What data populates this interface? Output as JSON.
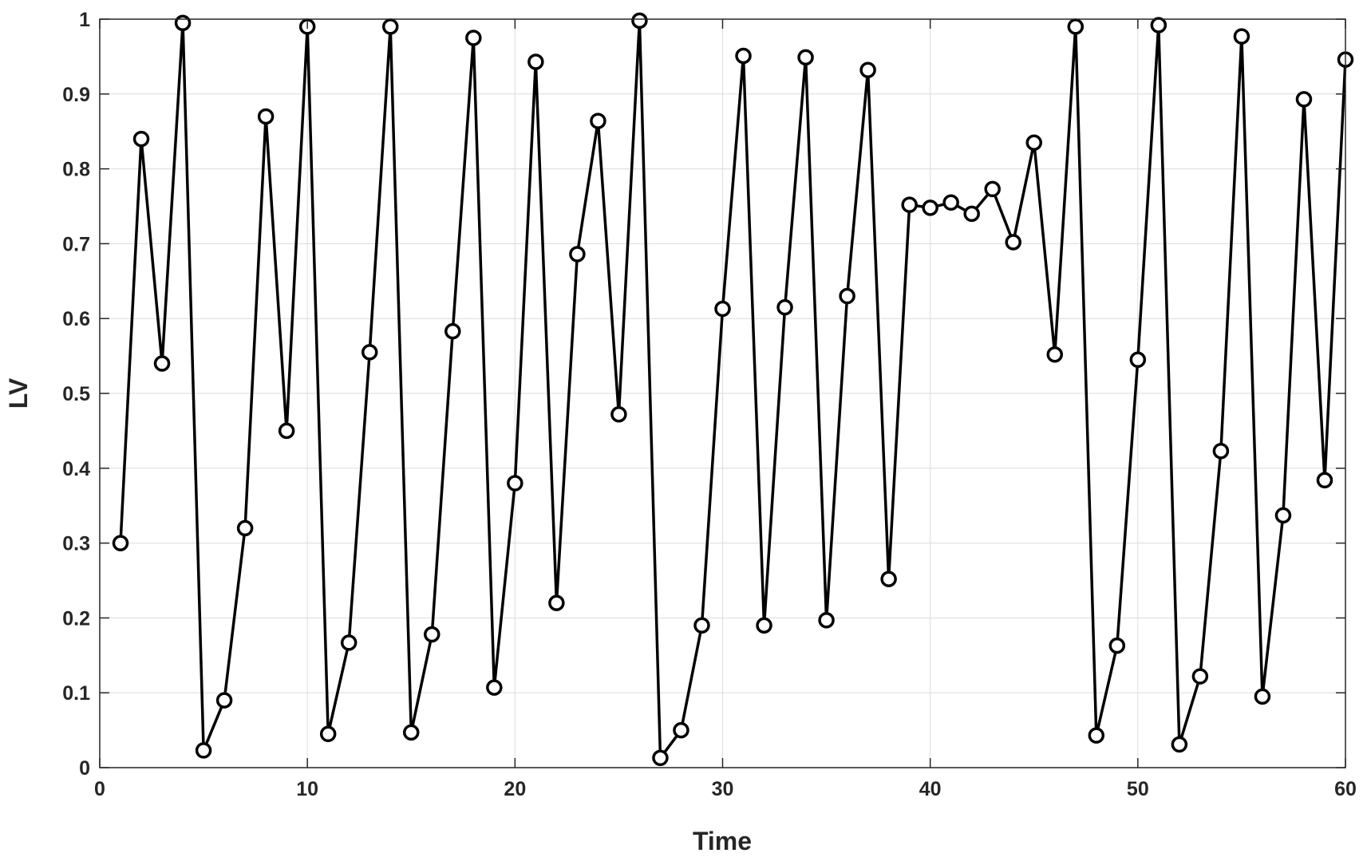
{
  "chart_data": {
    "type": "line",
    "title": "",
    "xlabel": "Time",
    "ylabel": "LV",
    "xlim": [
      0,
      60
    ],
    "ylim": [
      0,
      1
    ],
    "grid": true,
    "marker": "circle",
    "line_color": "#000000",
    "xticks": [
      0,
      10,
      20,
      30,
      40,
      50,
      60
    ],
    "yticks": [
      0,
      0.1,
      0.2,
      0.3,
      0.4,
      0.5,
      0.6,
      0.7,
      0.8,
      0.9,
      1
    ],
    "xtick_labels": [
      "0",
      "10",
      "20",
      "30",
      "40",
      "50",
      "60"
    ],
    "ytick_labels": [
      "0",
      "0.1",
      "0.2",
      "0.3",
      "0.4",
      "0.5",
      "0.6",
      "0.7",
      "0.8",
      "0.9",
      "1"
    ],
    "series": [
      {
        "x": [
          1,
          2,
          3,
          4,
          5,
          6,
          7,
          8,
          9,
          10,
          11,
          12,
          13,
          14,
          15,
          16,
          17,
          18,
          19,
          20,
          21,
          22,
          23,
          24,
          25,
          26,
          27,
          28,
          29,
          30,
          31,
          32,
          33,
          34,
          35,
          36,
          37,
          38,
          39,
          40,
          41,
          42,
          43,
          44,
          45,
          46,
          47,
          48,
          49,
          50,
          51,
          52,
          53,
          54,
          55,
          56,
          57,
          58,
          59,
          60
        ],
        "values": [
          0.3,
          0.84,
          0.54,
          0.995,
          0.023,
          0.09,
          0.32,
          0.87,
          0.45,
          0.99,
          0.045,
          0.167,
          0.555,
          0.99,
          0.047,
          0.178,
          0.583,
          0.975,
          0.107,
          0.38,
          0.943,
          0.22,
          0.686,
          0.864,
          0.472,
          0.998,
          0.013,
          0.05,
          0.19,
          0.613,
          0.951,
          0.19,
          0.615,
          0.949,
          0.197,
          0.63,
          0.932,
          0.252,
          0.752,
          0.748,
          0.755,
          0.74,
          0.773,
          0.702,
          0.835,
          0.552,
          0.99,
          0.043,
          0.163,
          0.545,
          0.992,
          0.031,
          0.122,
          0.423,
          0.977,
          0.095,
          0.337,
          0.893,
          0.384,
          0.946
        ]
      }
    ]
  }
}
